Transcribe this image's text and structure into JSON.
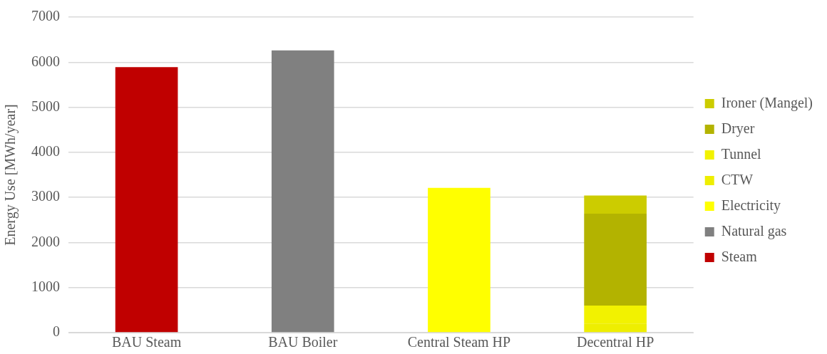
{
  "chart_data": {
    "type": "bar",
    "stacked": true,
    "ylabel": "Energy Use [MWh/year]",
    "categories": [
      "BAU Steam",
      "BAU Boiler",
      "Central Steam HP",
      "Decentral HP"
    ],
    "series": [
      {
        "name": "Steam",
        "color": "#c00000",
        "values": [
          5890,
          null,
          null,
          null
        ]
      },
      {
        "name": "Natural gas",
        "color": "#808080",
        "values": [
          null,
          6260,
          null,
          null
        ]
      },
      {
        "name": "Electricity",
        "color": "#ffff00",
        "values": [
          null,
          null,
          3210,
          null
        ]
      },
      {
        "name": "CTW",
        "color": "#eeee00",
        "values": [
          null,
          null,
          null,
          200
        ]
      },
      {
        "name": "Tunnel",
        "color": "#f2f200",
        "values": [
          null,
          null,
          null,
          400
        ]
      },
      {
        "name": "Dryer",
        "color": "#b3b300",
        "values": [
          null,
          null,
          null,
          2040
        ]
      },
      {
        "name": "Ironer (Mangel)",
        "color": "#cccc00",
        "values": [
          null,
          null,
          null,
          400
        ]
      }
    ],
    "ylim": [
      0,
      7000
    ],
    "yticks": [
      0,
      1000,
      2000,
      3000,
      4000,
      5000,
      6000,
      7000
    ],
    "grid": "y",
    "legend": "right"
  }
}
